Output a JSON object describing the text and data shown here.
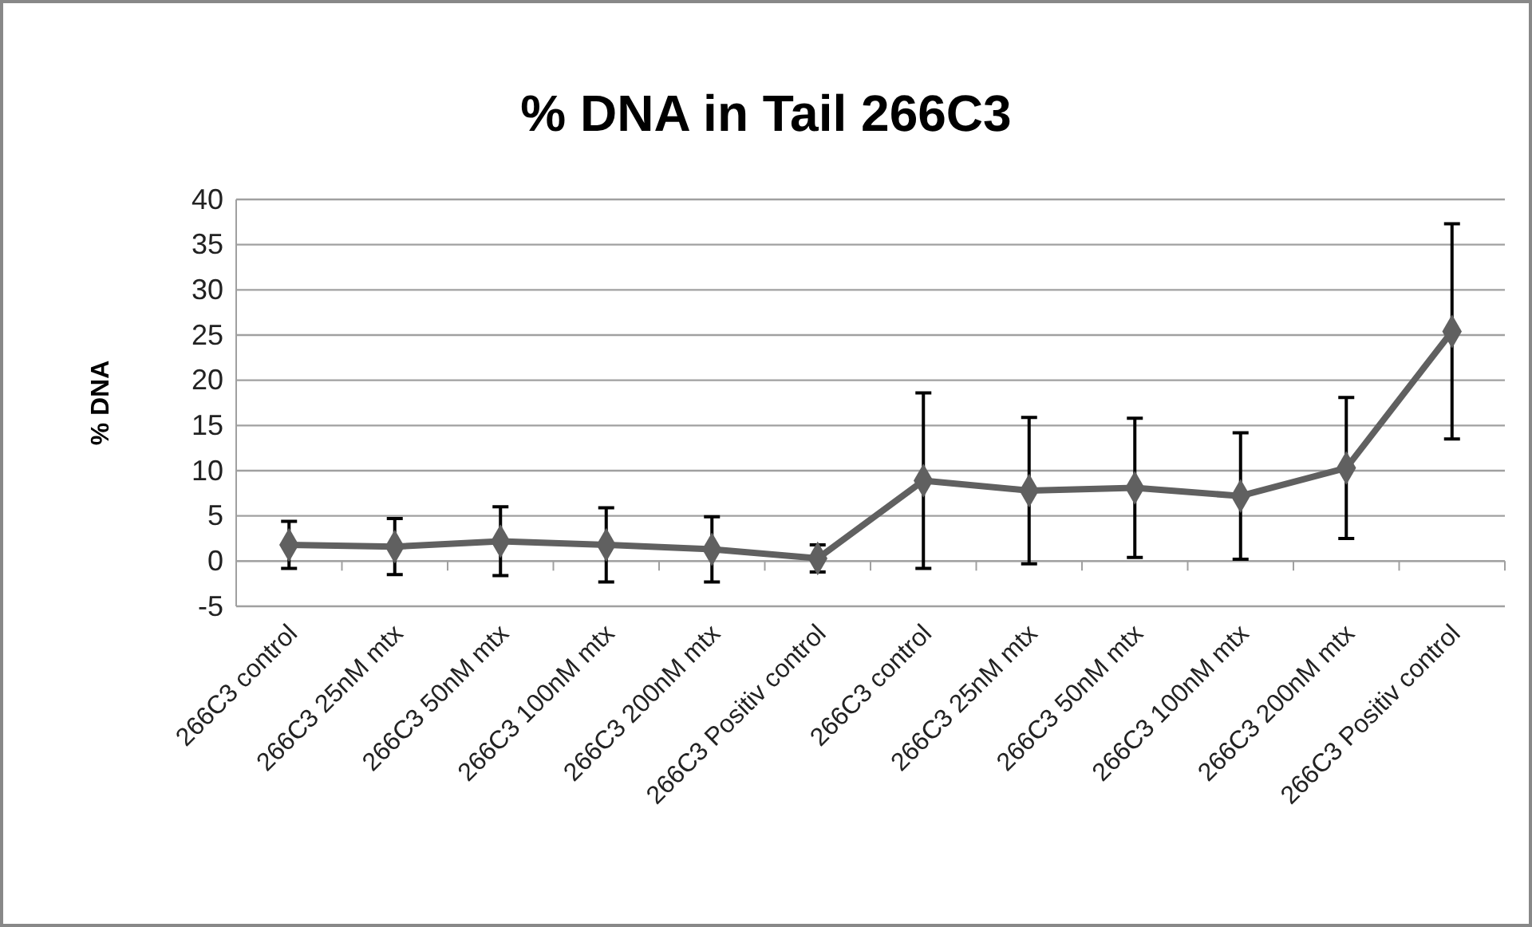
{
  "chart_data": {
    "type": "line",
    "title": "% DNA in Tail 266C3",
    "ylabel": "% DNA",
    "categories": [
      "266C3 control",
      "266C3 25nM mtx",
      "266C3 50nM mtx",
      "266C3 100nM mtx",
      "266C3 200nM mtx",
      "266C3 Positiv control",
      "266C3 control",
      "266C3 25nM mtx",
      "266C3 50nM mtx",
      "266C3 100nM mtx",
      "266C3 200nM mtx",
      "266C3 Positiv control"
    ],
    "series": [
      {
        "color": "#606060",
        "values": [
          1.8,
          1.6,
          2.2,
          1.8,
          1.3,
          0.3,
          8.9,
          7.8,
          8.1,
          7.2,
          10.3,
          25.4
        ],
        "errors": [
          2.6,
          3.1,
          3.8,
          4.1,
          3.6,
          1.5,
          9.7,
          8.1,
          7.7,
          7.0,
          7.8,
          11.9
        ]
      }
    ],
    "ylim": [
      -5,
      40
    ],
    "yticks": [
      -5,
      0,
      5,
      10,
      15,
      20,
      25,
      30,
      35,
      40
    ],
    "grid": "y",
    "marker": "diamond",
    "line_style": "solid"
  }
}
